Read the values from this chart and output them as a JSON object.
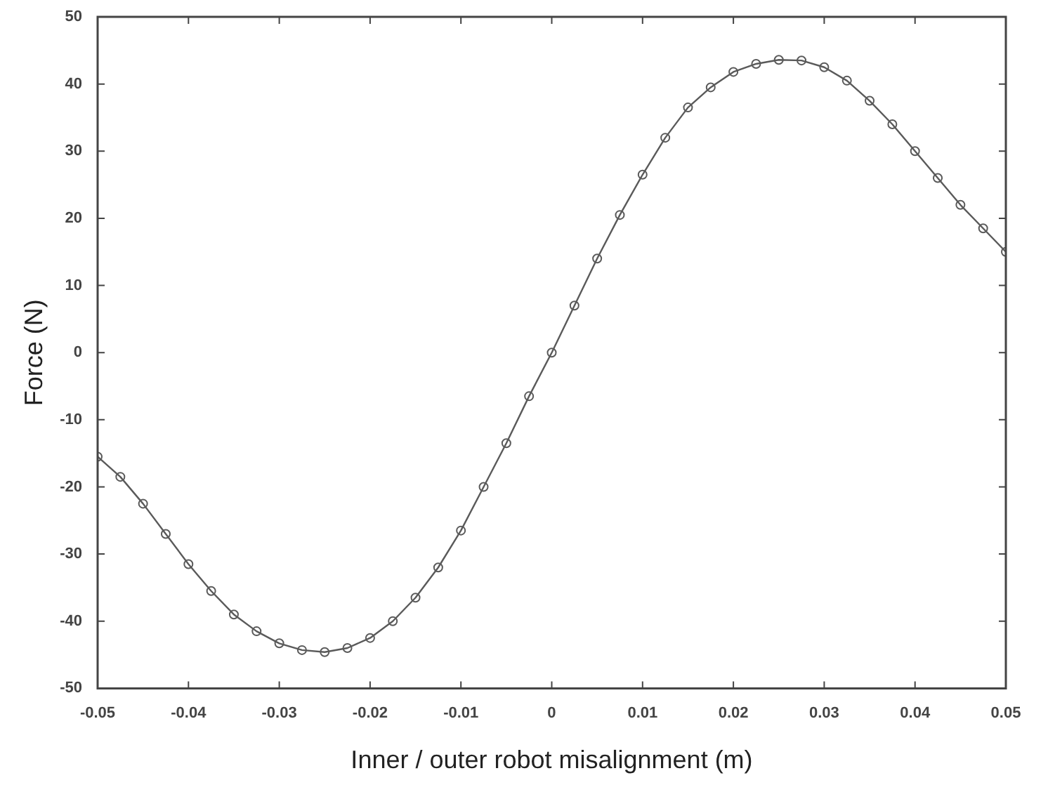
{
  "chart_data": {
    "type": "line",
    "xlabel": "Inner / outer robot misalignment (m)",
    "ylabel": "Force (N)",
    "x": [
      -0.05,
      -0.0475,
      -0.045,
      -0.0425,
      -0.04,
      -0.0375,
      -0.035,
      -0.0325,
      -0.03,
      -0.0275,
      -0.025,
      -0.0225,
      -0.02,
      -0.0175,
      -0.015,
      -0.0125,
      -0.01,
      -0.0075,
      -0.005,
      -0.0025,
      0,
      0.0025,
      0.005,
      0.0075,
      0.01,
      0.0125,
      0.015,
      0.0175,
      0.02,
      0.0225,
      0.025,
      0.0275,
      0.03,
      0.0325,
      0.035,
      0.0375,
      0.04,
      0.0425,
      0.045,
      0.0475,
      0.05
    ],
    "series": [
      {
        "color": "#5a5a5a",
        "values": [
          -15.5,
          -18.5,
          -22.5,
          -27,
          -31.5,
          -35.5,
          -39,
          -41.5,
          -43.3,
          -44.3,
          -44.6,
          -44,
          -42.5,
          -40,
          -36.5,
          -32,
          -26.5,
          -20,
          -13.5,
          -6.5,
          0,
          7,
          14,
          20.5,
          26.5,
          32,
          36.5,
          39.5,
          41.8,
          43,
          43.6,
          43.5,
          42.5,
          40.5,
          37.5,
          34,
          30,
          26,
          22,
          18.5,
          15
        ]
      }
    ],
    "xlim": [
      -0.05,
      0.05
    ],
    "xticks": [
      -0.05,
      -0.04,
      -0.03,
      -0.02,
      -0.01,
      0,
      0.01,
      0.02,
      0.03,
      0.04,
      0.05
    ],
    "ylim": [
      -50,
      50
    ],
    "yticks": [
      -50,
      -40,
      -30,
      -20,
      -10,
      0,
      10,
      20,
      30,
      40,
      50
    ],
    "marker": "circle",
    "line_style": "solid",
    "legend": false
  }
}
